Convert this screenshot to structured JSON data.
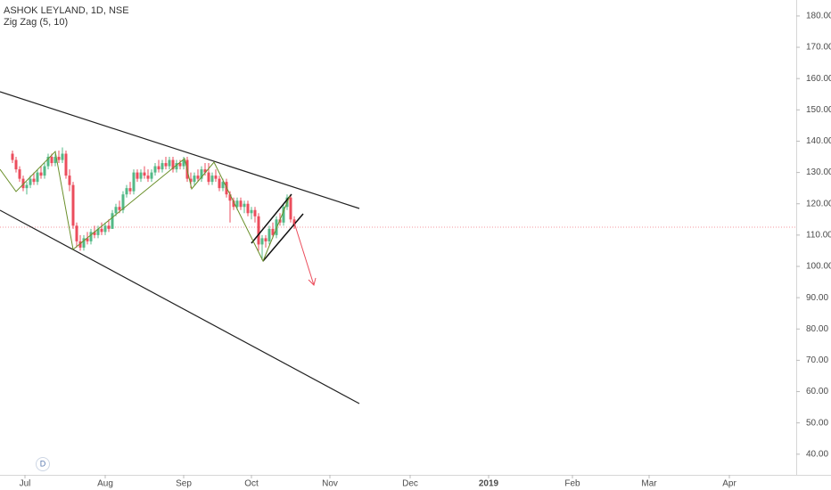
{
  "chart_data": {
    "type": "candlestick",
    "title": "ASHOK LEYLAND, 1D, NSE",
    "subtitle": "Zig Zag (5, 10)",
    "badge": "D",
    "up_color": "#53b987",
    "down_color": "#eb4d5c",
    "x": [
      0,
      1,
      2,
      3,
      4,
      5,
      6,
      7,
      8,
      9,
      10,
      11,
      12,
      13,
      14,
      15,
      16,
      17,
      18,
      19,
      20,
      21,
      22,
      23,
      24,
      25,
      26,
      27,
      28,
      29,
      30,
      31,
      32,
      33,
      34,
      35,
      36,
      37,
      38,
      39,
      40,
      41,
      42,
      43,
      44,
      45,
      46,
      47,
      48,
      49,
      50,
      51,
      52,
      53,
      54,
      55,
      56,
      57,
      58,
      59,
      60,
      61,
      62,
      63,
      64,
      65,
      66,
      67,
      68,
      69,
      70,
      71,
      72,
      73,
      74,
      75,
      76,
      77,
      78,
      79
    ],
    "open": [
      136,
      134,
      131,
      128,
      125,
      126,
      128,
      127,
      130,
      129,
      132,
      135,
      133,
      135,
      134,
      136,
      129,
      126,
      113,
      108,
      106,
      109,
      108,
      111,
      110,
      112,
      111,
      113,
      112,
      117,
      119,
      118,
      123,
      125,
      124,
      130,
      128,
      130,
      129,
      128,
      130,
      132,
      131,
      133,
      132,
      134,
      131,
      133,
      132,
      134,
      128,
      127,
      129,
      128,
      131,
      130,
      127,
      129,
      128,
      125,
      127,
      123,
      121,
      119,
      121,
      119,
      120,
      117,
      118,
      116,
      107,
      109,
      108,
      112,
      110,
      115,
      114,
      119,
      122,
      115
    ],
    "high": [
      137,
      135,
      132,
      129,
      127,
      129,
      130,
      131,
      132,
      133,
      136,
      136,
      136,
      137,
      138,
      137,
      131,
      127,
      114,
      110,
      110,
      111,
      112,
      113,
      113,
      114,
      114,
      115,
      118,
      120,
      121,
      124,
      126,
      127,
      131,
      131,
      131,
      132,
      131,
      131,
      133,
      134,
      134,
      135,
      135,
      135,
      134,
      134,
      135,
      135,
      130,
      130,
      131,
      132,
      133,
      133,
      130,
      131,
      129,
      128,
      128,
      124,
      122,
      122,
      122,
      121,
      121,
      119,
      119,
      117,
      110,
      110,
      113,
      114,
      116,
      117,
      120,
      123,
      123,
      116
    ],
    "low": [
      133,
      130,
      127,
      124,
      123,
      125,
      126,
      126,
      128,
      128,
      131,
      132,
      132,
      133,
      133,
      128,
      124,
      112,
      106,
      105,
      105,
      107,
      107,
      109,
      109,
      110,
      110,
      111,
      112,
      116,
      117,
      117,
      122,
      123,
      123,
      127,
      127,
      128,
      127,
      127,
      129,
      130,
      130,
      131,
      131,
      130,
      130,
      131,
      131,
      127,
      125,
      126,
      127,
      127,
      129,
      126,
      126,
      127,
      124,
      124,
      122,
      114,
      118,
      118,
      118,
      117,
      116,
      115,
      114,
      105,
      102,
      106,
      107,
      109,
      109,
      113,
      113,
      118,
      114,
      112
    ],
    "close": [
      134,
      131,
      128,
      125,
      126,
      128,
      127,
      130,
      129,
      132,
      135,
      133,
      135,
      134,
      136,
      129,
      126,
      113,
      108,
      106,
      109,
      108,
      111,
      110,
      112,
      111,
      113,
      112,
      117,
      119,
      118,
      123,
      125,
      124,
      130,
      128,
      130,
      129,
      128,
      130,
      132,
      131,
      133,
      132,
      134,
      131,
      133,
      132,
      134,
      128,
      127,
      129,
      128,
      131,
      130,
      127,
      129,
      128,
      125,
      127,
      123,
      121,
      119,
      121,
      119,
      120,
      117,
      118,
      116,
      107,
      109,
      108,
      112,
      110,
      115,
      114,
      119,
      122,
      115,
      113
    ],
    "xlim": [
      -3.5,
      219.5
    ],
    "xticks": [
      {
        "value": 3.5,
        "label": "Jul"
      },
      {
        "value": 26,
        "label": "Aug"
      },
      {
        "value": 48,
        "label": "Sep"
      },
      {
        "value": 67,
        "label": "Oct"
      },
      {
        "value": 89,
        "label": "Nov"
      },
      {
        "value": 111.5,
        "label": "Dec"
      },
      {
        "value": 133.5,
        "label": "2019"
      },
      {
        "value": 157,
        "label": "Feb"
      },
      {
        "value": 178.5,
        "label": "Mar"
      },
      {
        "value": 201,
        "label": "Apr"
      }
    ],
    "ylim": [
      33.4,
      185.1
    ],
    "yticks": [
      {
        "value": 40,
        "label": "40.00"
      },
      {
        "value": 50,
        "label": "50.00"
      },
      {
        "value": 60,
        "label": "60.00"
      },
      {
        "value": 70,
        "label": "70.00"
      },
      {
        "value": 80,
        "label": "80.00"
      },
      {
        "value": 90,
        "label": "90.00"
      },
      {
        "value": 100,
        "label": "100.00"
      },
      {
        "value": 110,
        "label": "110.00"
      },
      {
        "value": 120,
        "label": "120.00"
      },
      {
        "value": 130,
        "label": "130.00"
      },
      {
        "value": 140,
        "label": "140.00"
      },
      {
        "value": 150,
        "label": "150.00"
      },
      {
        "value": 160,
        "label": "160.00"
      },
      {
        "value": 170,
        "label": "170.00"
      },
      {
        "value": 180,
        "label": "180.00"
      }
    ]
  }
}
